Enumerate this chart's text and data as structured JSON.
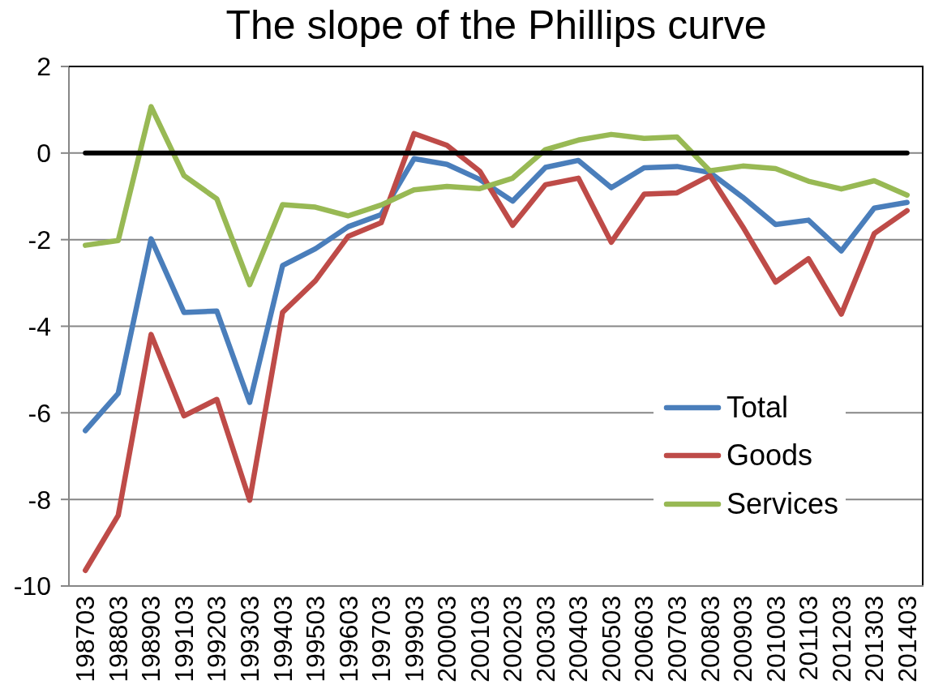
{
  "chart_data": {
    "type": "line",
    "title": "The slope of the Phillips curve",
    "categories": [
      "198703",
      "198803",
      "198903",
      "199103",
      "199203",
      "199303",
      "199403",
      "199503",
      "199603",
      "199703",
      "199903",
      "200003",
      "200103",
      "200203",
      "200303",
      "200403",
      "200503",
      "200603",
      "200703",
      "200803",
      "200903",
      "201003",
      "201103",
      "201203",
      "201303",
      "201403"
    ],
    "series": [
      {
        "name": "Total",
        "color": "#4a7ebb",
        "values": [
          -6.41,
          -5.55,
          -1.98,
          -3.68,
          -3.65,
          -5.76,
          -2.6,
          -2.21,
          -1.7,
          -1.42,
          -0.13,
          -0.26,
          -0.61,
          -1.11,
          -0.33,
          -0.17,
          -0.8,
          -0.34,
          -0.31,
          -0.45,
          -1.02,
          -1.65,
          -1.55,
          -2.26,
          -1.27,
          -1.14
        ]
      },
      {
        "name": "Goods",
        "color": "#be4b48",
        "values": [
          -9.64,
          -8.37,
          -4.19,
          -6.07,
          -5.69,
          -8.02,
          -3.68,
          -2.95,
          -1.92,
          -1.61,
          0.45,
          0.18,
          -0.42,
          -1.67,
          -0.73,
          -0.58,
          -2.06,
          -0.95,
          -0.92,
          -0.52,
          -1.7,
          -2.98,
          -2.44,
          -3.72,
          -1.86,
          -1.33
        ]
      },
      {
        "name": "Services",
        "color": "#98b954",
        "values": [
          -2.13,
          -2.02,
          1.07,
          -0.52,
          -1.06,
          -3.04,
          -1.19,
          -1.25,
          -1.45,
          -1.2,
          -0.85,
          -0.77,
          -0.82,
          -0.58,
          0.08,
          0.3,
          0.43,
          0.34,
          0.37,
          -0.41,
          -0.3,
          -0.36,
          -0.65,
          -0.83,
          -0.64,
          -0.97
        ]
      }
    ],
    "ylim": [
      -10,
      2
    ],
    "yticks": [
      -10,
      -8,
      -6,
      -4,
      -2,
      0,
      2
    ],
    "grid": "y",
    "legend": "bottom right",
    "marker": "none",
    "line_style": "solid",
    "ref_lines": [
      {
        "axis": "y",
        "value": 0,
        "color": "#000000"
      }
    ]
  }
}
